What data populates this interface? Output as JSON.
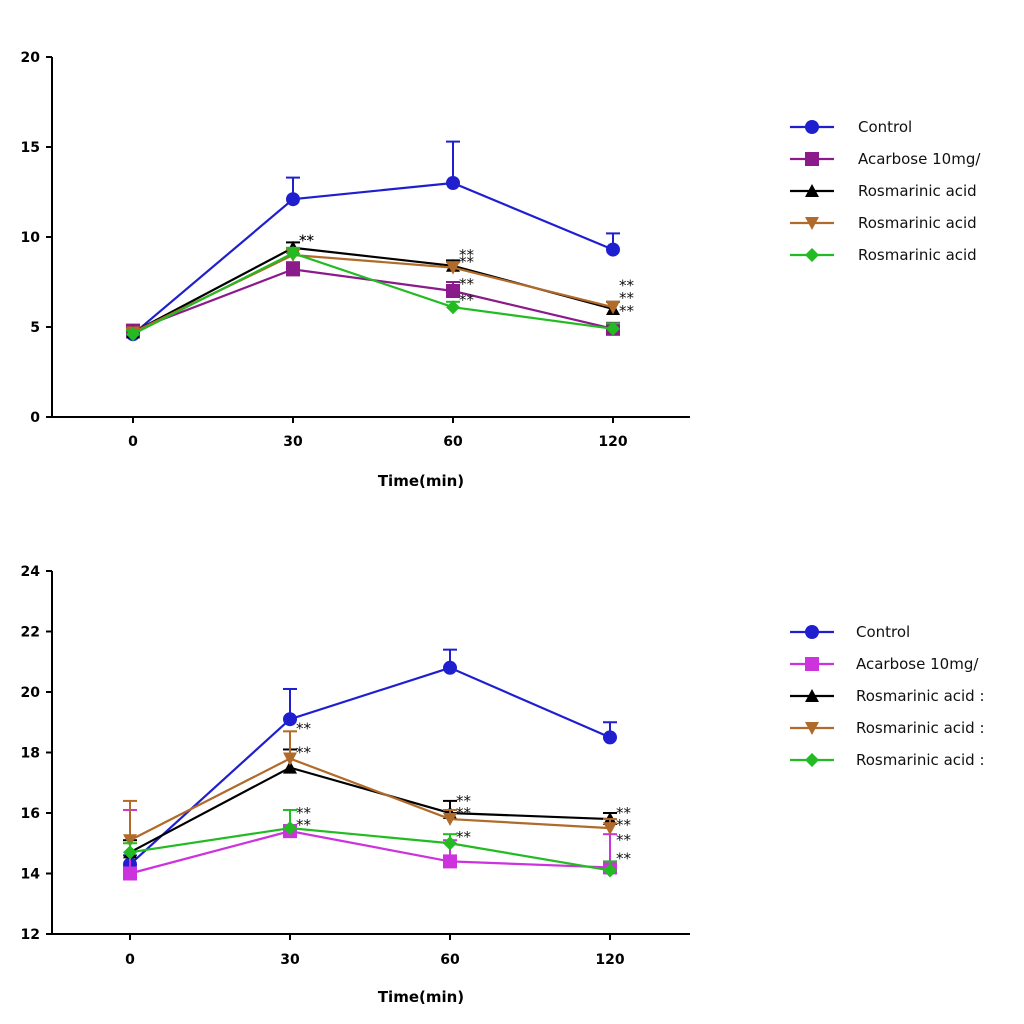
{
  "chart_data": [
    {
      "type": "line",
      "title": "",
      "xlabel": "Time(min)",
      "ylabel": "",
      "categories": [
        "0",
        "30",
        "60",
        "120"
      ],
      "ylim": [
        0,
        20
      ],
      "yticks": [
        "0",
        "5",
        "10",
        "15",
        "20"
      ],
      "series": [
        {
          "name": "Control",
          "color": "#1f1fd0",
          "marker": "circle",
          "values": [
            4.6,
            12.1,
            13.0,
            9.3
          ],
          "errors": [
            0.2,
            1.2,
            2.3,
            0.9
          ]
        },
        {
          "name": "Acarbose 10mg/",
          "color": "#8b1a8b",
          "marker": "square",
          "values": [
            4.8,
            8.2,
            7.0,
            4.9
          ],
          "errors": [
            0.2,
            0.4,
            0.5,
            0.3
          ]
        },
        {
          "name": "Rosmarinic acid",
          "color": "#000000",
          "marker": "triangle-up",
          "values": [
            4.7,
            9.4,
            8.4,
            6.0
          ],
          "errors": [
            0.2,
            0.3,
            0.3,
            0.4
          ]
        },
        {
          "name": "Rosmarinic acid",
          "color": "#b06a2a",
          "marker": "triangle-down",
          "values": [
            4.7,
            9.0,
            8.3,
            6.1
          ],
          "errors": [
            0.2,
            0.3,
            0.3,
            0.3
          ]
        },
        {
          "name": "Rosmarinic acid",
          "color": "#22bb22",
          "marker": "diamond",
          "values": [
            4.6,
            9.1,
            6.1,
            4.9
          ],
          "errors": [
            0.2,
            0.3,
            0.3,
            0.3
          ]
        }
      ],
      "annotations": [
        {
          "text": "**",
          "x": "30",
          "y": 9.8
        },
        {
          "text": "**",
          "x": "30",
          "y": 9.8
        },
        {
          "text": "**",
          "x": "60",
          "y": 9.0
        },
        {
          "text": "**",
          "x": "60",
          "y": 8.6
        },
        {
          "text": "**",
          "x": "60",
          "y": 7.4
        },
        {
          "text": "**",
          "x": "60",
          "y": 6.5
        },
        {
          "text": "**",
          "x": "120",
          "y": 7.3
        },
        {
          "text": "**",
          "x": "120",
          "y": 6.6
        },
        {
          "text": "**",
          "x": "120",
          "y": 5.9
        }
      ]
    },
    {
      "type": "line",
      "title": "",
      "xlabel": "Time(min)",
      "ylabel": "",
      "categories": [
        "0",
        "30",
        "60",
        "120"
      ],
      "ylim": [
        12,
        24
      ],
      "yticks": [
        "12",
        "14",
        "16",
        "18",
        "20",
        "22",
        "24"
      ],
      "series": [
        {
          "name": "Control",
          "color": "#1f1fd0",
          "marker": "circle",
          "values": [
            14.3,
            19.1,
            20.8,
            18.5
          ],
          "errors": [
            0.3,
            1.0,
            0.6,
            0.5
          ]
        },
        {
          "name": "Acarbose 10mg/",
          "color": "#cc33dd",
          "marker": "square",
          "values": [
            14.0,
            15.4,
            14.4,
            14.2
          ],
          "errors": [
            2.1,
            0.2,
            0.7,
            1.1
          ]
        },
        {
          "name": "Rosmarinic acid :",
          "color": "#000000",
          "marker": "triangle-up",
          "values": [
            14.7,
            17.5,
            16.0,
            15.8
          ],
          "errors": [
            0.4,
            0.6,
            0.4,
            0.2
          ]
        },
        {
          "name": "Rosmarinic acid :",
          "color": "#b06a2a",
          "marker": "triangle-down",
          "values": [
            15.1,
            17.8,
            15.8,
            15.5
          ],
          "errors": [
            1.3,
            0.9,
            0.3,
            0.3
          ]
        },
        {
          "name": "Rosmarinic acid :",
          "color": "#22bb22",
          "marker": "diamond",
          "values": [
            14.7,
            15.5,
            15.0,
            14.1
          ],
          "errors": [
            0.3,
            0.6,
            0.3,
            0.3
          ]
        }
      ],
      "annotations": [
        {
          "text": "**",
          "x": "30",
          "y": 18.8
        },
        {
          "text": "**",
          "x": "30",
          "y": 18.0
        },
        {
          "text": "**",
          "x": "30",
          "y": 16.0
        },
        {
          "text": "**",
          "x": "30",
          "y": 15.6
        },
        {
          "text": "**",
          "x": "60",
          "y": 16.4
        },
        {
          "text": "**",
          "x": "60",
          "y": 16.0
        },
        {
          "text": "**",
          "x": "60",
          "y": 15.2
        },
        {
          "text": "**",
          "x": "120",
          "y": 16.0
        },
        {
          "text": "**",
          "x": "120",
          "y": 15.6
        },
        {
          "text": "**",
          "x": "120",
          "y": 15.1
        },
        {
          "text": "**",
          "x": "120",
          "y": 14.5
        }
      ]
    }
  ]
}
